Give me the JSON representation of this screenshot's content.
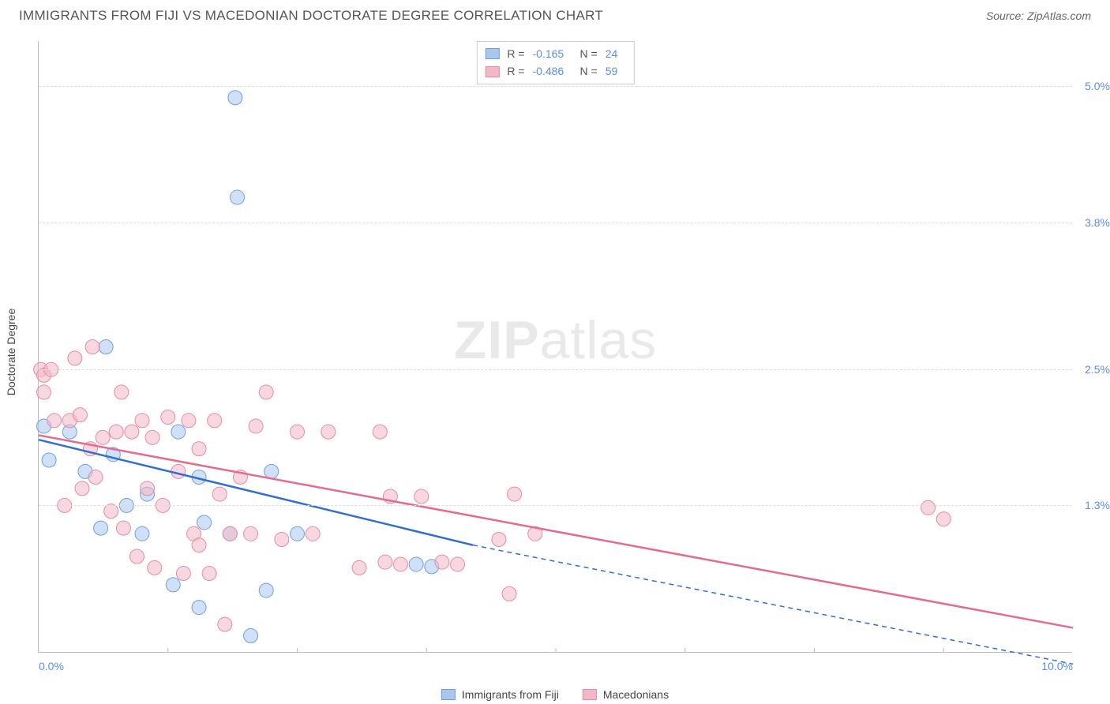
{
  "title": "IMMIGRANTS FROM FIJI VS MACEDONIAN DOCTORATE DEGREE CORRELATION CHART",
  "source": "Source: ZipAtlas.com",
  "yaxis_title": "Doctorate Degree",
  "watermark_bold": "ZIP",
  "watermark_rest": "atlas",
  "chart": {
    "type": "scatter",
    "xlim": [
      0.0,
      10.0
    ],
    "ylim": [
      0.0,
      5.4
    ],
    "x_ticks": [
      0.0,
      10.0
    ],
    "x_tick_labels": [
      "0.0%",
      "10.0%"
    ],
    "x_minor_ticks": [
      1.25,
      2.5,
      3.75,
      5.0,
      6.25,
      7.5,
      8.75
    ],
    "y_ticks": [
      1.3,
      2.5,
      3.8,
      5.0
    ],
    "y_tick_labels": [
      "1.3%",
      "2.5%",
      "3.8%",
      "5.0%"
    ],
    "background_color": "#ffffff",
    "grid_color": "#dddddd",
    "point_radius": 9,
    "point_opacity": 0.55,
    "series": [
      {
        "name": "Immigrants from Fiji",
        "fill": "#a9c6ef",
        "stroke": "#6f9fde",
        "line_color": "#2f6fd1",
        "r_value": "-0.165",
        "n_value": "24",
        "trend": {
          "x1": 0.0,
          "y1": 1.88,
          "x2": 4.2,
          "y2": 0.95,
          "dash_to_x": 10.0,
          "dash_to_y": -0.1
        },
        "points": [
          [
            0.05,
            2.0
          ],
          [
            0.1,
            1.7
          ],
          [
            0.65,
            2.7
          ],
          [
            0.45,
            1.6
          ],
          [
            0.72,
            1.75
          ],
          [
            0.6,
            1.1
          ],
          [
            1.05,
            1.4
          ],
          [
            1.0,
            1.05
          ],
          [
            1.3,
            0.6
          ],
          [
            1.35,
            1.95
          ],
          [
            1.6,
            1.15
          ],
          [
            1.55,
            0.4
          ],
          [
            1.55,
            1.55
          ],
          [
            1.85,
            1.05
          ],
          [
            1.9,
            4.9
          ],
          [
            1.92,
            4.02
          ],
          [
            2.05,
            0.15
          ],
          [
            2.2,
            0.55
          ],
          [
            2.25,
            1.6
          ],
          [
            2.5,
            1.05
          ],
          [
            3.65,
            0.78
          ],
          [
            3.8,
            0.76
          ],
          [
            0.3,
            1.95
          ],
          [
            0.85,
            1.3
          ]
        ]
      },
      {
        "name": "Macedonians",
        "fill": "#f3b8c6",
        "stroke": "#e88aa3",
        "line_color": "#e56a8e",
        "r_value": "-0.486",
        "n_value": "59",
        "trend": {
          "x1": 0.0,
          "y1": 1.92,
          "x2": 10.0,
          "y2": 0.22
        },
        "points": [
          [
            0.02,
            2.5
          ],
          [
            0.05,
            2.45
          ],
          [
            0.05,
            2.3
          ],
          [
            0.12,
            2.5
          ],
          [
            0.3,
            2.05
          ],
          [
            0.35,
            2.6
          ],
          [
            0.4,
            2.1
          ],
          [
            0.42,
            1.45
          ],
          [
            0.5,
            1.8
          ],
          [
            0.52,
            2.7
          ],
          [
            0.55,
            1.55
          ],
          [
            0.62,
            1.9
          ],
          [
            0.7,
            1.25
          ],
          [
            0.75,
            1.95
          ],
          [
            0.8,
            2.3
          ],
          [
            0.82,
            1.1
          ],
          [
            0.9,
            1.95
          ],
          [
            0.95,
            0.85
          ],
          [
            1.0,
            2.05
          ],
          [
            1.05,
            1.45
          ],
          [
            1.1,
            1.9
          ],
          [
            1.12,
            0.75
          ],
          [
            1.2,
            1.3
          ],
          [
            1.25,
            2.08
          ],
          [
            1.35,
            1.6
          ],
          [
            1.4,
            0.7
          ],
          [
            1.45,
            2.05
          ],
          [
            1.5,
            1.05
          ],
          [
            1.55,
            1.8
          ],
          [
            1.55,
            0.95
          ],
          [
            1.65,
            0.7
          ],
          [
            1.7,
            2.05
          ],
          [
            1.75,
            1.4
          ],
          [
            1.8,
            0.25
          ],
          [
            1.85,
            1.05
          ],
          [
            1.95,
            1.55
          ],
          [
            2.05,
            1.05
          ],
          [
            2.1,
            2.0
          ],
          [
            2.2,
            2.3
          ],
          [
            2.35,
            1.0
          ],
          [
            2.5,
            1.95
          ],
          [
            2.65,
            1.05
          ],
          [
            2.8,
            1.95
          ],
          [
            3.1,
            0.75
          ],
          [
            3.3,
            1.95
          ],
          [
            3.35,
            0.8
          ],
          [
            3.4,
            1.38
          ],
          [
            3.5,
            0.78
          ],
          [
            3.7,
            1.38
          ],
          [
            3.9,
            0.8
          ],
          [
            4.05,
            0.78
          ],
          [
            4.45,
            1.0
          ],
          [
            4.55,
            0.52
          ],
          [
            4.6,
            1.4
          ],
          [
            4.8,
            1.05
          ],
          [
            8.6,
            1.28
          ],
          [
            8.75,
            1.18
          ],
          [
            0.25,
            1.3
          ],
          [
            0.15,
            2.05
          ]
        ]
      }
    ]
  },
  "legend_top": [
    {
      "series_index": 0
    },
    {
      "series_index": 1
    }
  ],
  "legend_bottom": [
    {
      "series_index": 0
    },
    {
      "series_index": 1
    }
  ]
}
